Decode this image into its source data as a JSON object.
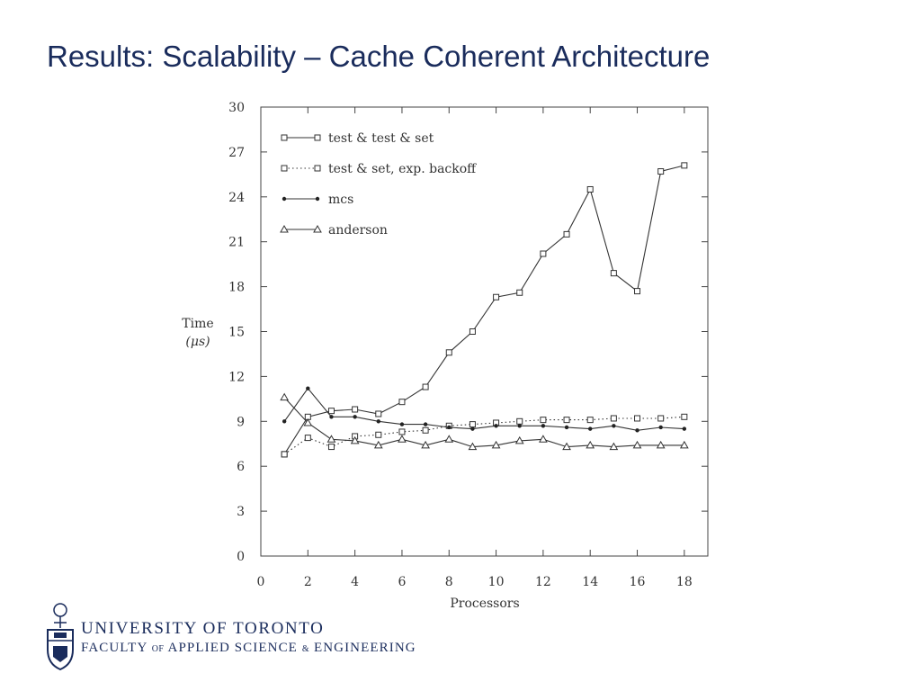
{
  "slide": {
    "title": "Results: Scalability – Cache Coherent Architecture"
  },
  "footer": {
    "university": "UNIVERSITY OF TORONTO",
    "faculty_part1": "FACULTY",
    "faculty_of": "OF",
    "faculty_part2": "APPLIED SCIENCE",
    "faculty_amp": "&",
    "faculty_part3": "ENGINEERING",
    "crest_icon": "university-crest-icon"
  },
  "chart_data": {
    "type": "line",
    "xlabel": "Processors",
    "ylabel_line1": "Time",
    "ylabel_line2": "(μs)",
    "xlim": [
      0,
      19
    ],
    "ylim": [
      0,
      30
    ],
    "xticks": [
      0,
      2,
      4,
      6,
      8,
      10,
      12,
      14,
      16,
      18
    ],
    "yticks": [
      0,
      3,
      6,
      9,
      12,
      15,
      18,
      21,
      24,
      27,
      30
    ],
    "grid": false,
    "legend_position": "top-left",
    "x": [
      1,
      2,
      3,
      4,
      5,
      6,
      7,
      8,
      9,
      10,
      11,
      12,
      13,
      14,
      15,
      16,
      17,
      18
    ],
    "series": [
      {
        "name": "test & test & set",
        "marker": "square",
        "dash": "solid",
        "values": [
          6.8,
          9.3,
          9.7,
          9.8,
          9.5,
          10.3,
          11.3,
          13.6,
          15.0,
          17.3,
          17.6,
          20.2,
          21.5,
          24.5,
          18.9,
          17.7,
          25.7,
          26.1
        ]
      },
      {
        "name": "test & set, exp. backoff",
        "marker": "square",
        "dash": "dotted",
        "values": [
          6.8,
          7.9,
          7.3,
          8.0,
          8.1,
          8.3,
          8.4,
          8.7,
          8.8,
          8.9,
          9.0,
          9.1,
          9.1,
          9.1,
          9.2,
          9.2,
          9.2,
          9.3
        ]
      },
      {
        "name": "mcs",
        "marker": "dot",
        "dash": "solid",
        "values": [
          9.0,
          11.2,
          9.3,
          9.3,
          9.0,
          8.8,
          8.8,
          8.6,
          8.5,
          8.7,
          8.7,
          8.7,
          8.6,
          8.5,
          8.7,
          8.4,
          8.6,
          8.5
        ]
      },
      {
        "name": "anderson",
        "marker": "triangle",
        "dash": "solid",
        "values": [
          10.6,
          8.9,
          7.8,
          7.7,
          7.4,
          7.8,
          7.4,
          7.8,
          7.3,
          7.4,
          7.7,
          7.8,
          7.3,
          7.4,
          7.3,
          7.4,
          7.4,
          7.4
        ]
      }
    ]
  }
}
